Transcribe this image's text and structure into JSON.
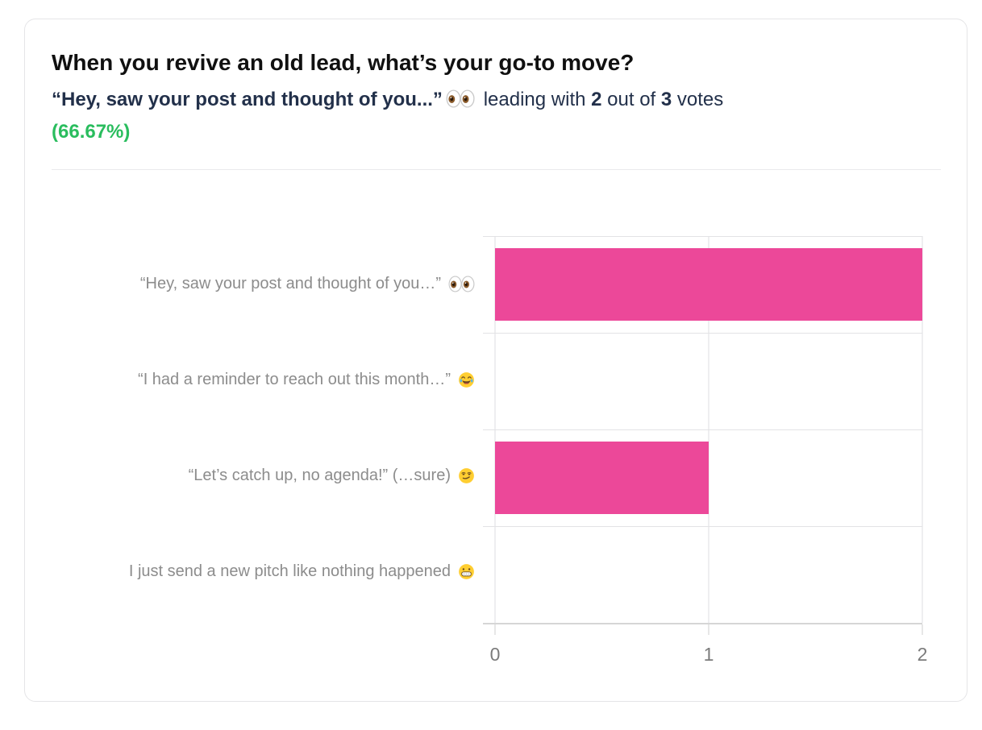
{
  "card": {
    "title": "When you revive an old lead, what’s your go-to move?",
    "subtitle": {
      "lead_quote": "“Hey, saw your post and thought of you...”",
      "lead_emoji": "👀",
      "lead_emoji_name": "eyes",
      "text_leading_with": " leading with ",
      "votes_leading": "2",
      "text_out_of": " out of ",
      "votes_total": "3",
      "text_votes": " votes",
      "percent_label": "(66.67%)"
    }
  },
  "chart_data": {
    "type": "bar",
    "orientation": "horizontal",
    "title": "",
    "xlabel": "",
    "ylabel": "",
    "categories": [
      {
        "label": "“Hey, saw your post and thought of you…” 👀",
        "text": "“Hey, saw your post and thought of you…”",
        "emoji": "👀",
        "emoji_name": "eyes"
      },
      {
        "label": "“I had a reminder to reach out this month…” 😂",
        "text": "“I had a reminder to reach out this month…”",
        "emoji": "😂",
        "emoji_name": "joy"
      },
      {
        "label": "“Let’s catch up, no agenda!” (…sure) 😏",
        "text": "“Let’s catch up, no agenda!” (…sure)",
        "emoji": "😏",
        "emoji_name": "smirk"
      },
      {
        "label": "I just send a new pitch like nothing happened 😬",
        "text": "I just send a new pitch like nothing happened",
        "emoji": "😬",
        "emoji_name": "grimace"
      }
    ],
    "values": [
      2,
      0,
      1,
      0
    ],
    "xlim": [
      0,
      2
    ],
    "x_ticks": [
      "0",
      "1",
      "2"
    ],
    "grid": true,
    "legend": false,
    "bar_color": "#ec4899"
  },
  "colors": {
    "accent_bar": "#ec4899",
    "percent_green": "#2abd5e",
    "title_text": "#101010",
    "subtitle_text": "#22304a",
    "category_text": "#8c8c8c",
    "axis_text": "#7b7b7b",
    "gridline": "#dedee0",
    "card_border": "#e5e5e7"
  }
}
